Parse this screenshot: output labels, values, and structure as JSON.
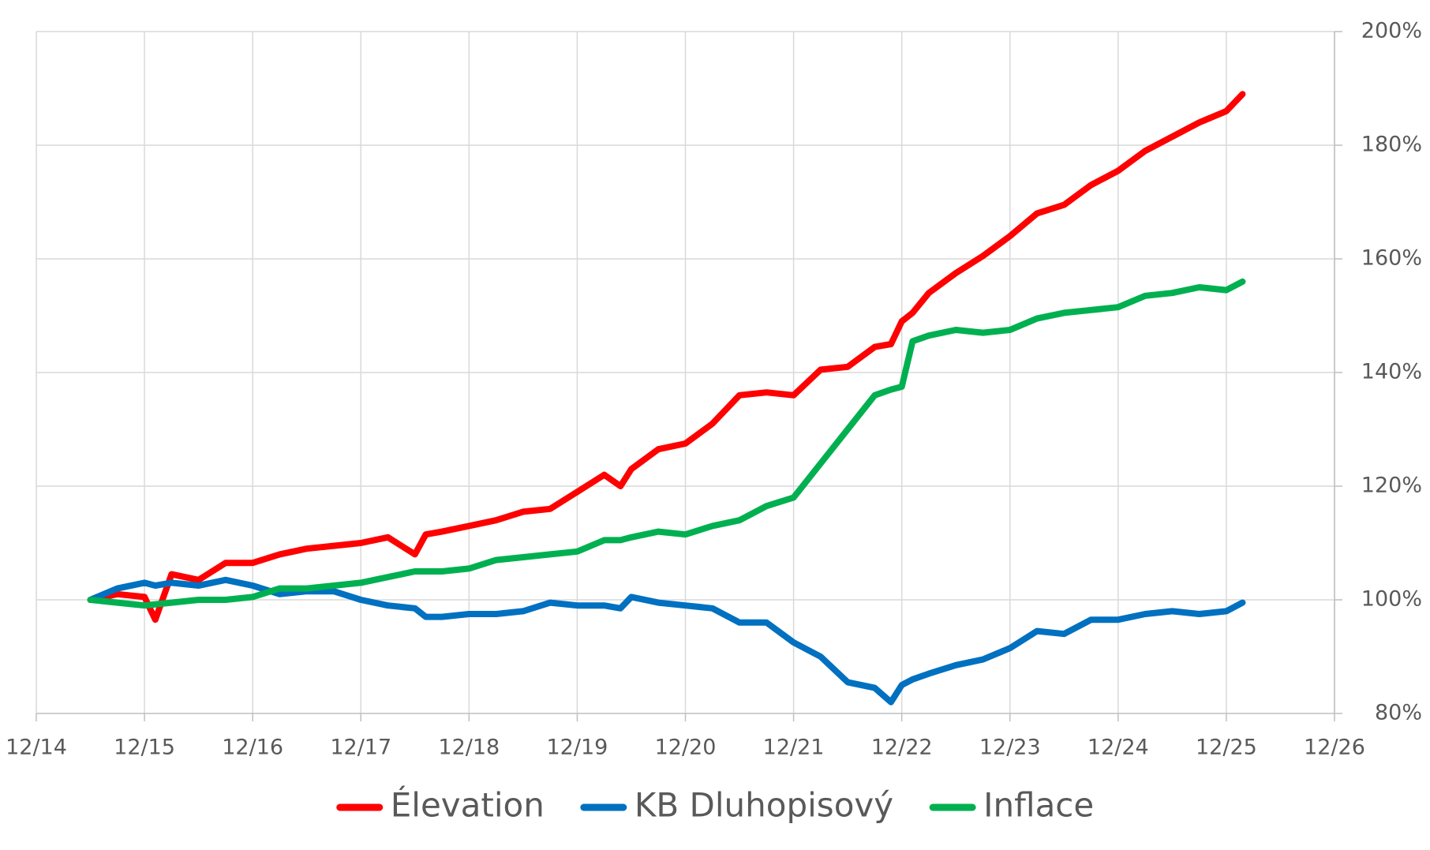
{
  "chart_data": {
    "type": "line",
    "x": [
      2015.5,
      2015.75,
      2016.0,
      2016.1,
      2016.25,
      2016.5,
      2016.75,
      2017.0,
      2017.25,
      2017.5,
      2017.75,
      2018.0,
      2018.25,
      2018.5,
      2018.6,
      2018.75,
      2019.0,
      2019.25,
      2019.5,
      2019.75,
      2020.0,
      2020.25,
      2020.4,
      2020.5,
      2020.75,
      2021.0,
      2021.25,
      2021.5,
      2021.75,
      2022.0,
      2022.25,
      2022.5,
      2022.75,
      2022.9,
      2023.0,
      2023.1,
      2023.25,
      2023.5,
      2023.75,
      2024.0,
      2024.25,
      2024.5,
      2024.75,
      2025.0,
      2025.25,
      2025.5,
      2025.75,
      2026.0,
      2026.15
    ],
    "series": [
      {
        "name": "Élevation",
        "color": "#ff0000",
        "values": [
          100,
          101,
          100.5,
          96.5,
          104.5,
          103.5,
          106.5,
          106.5,
          108,
          109,
          109.5,
          110,
          111,
          108,
          111.5,
          112,
          113,
          114,
          115.5,
          116,
          119,
          122,
          120,
          123,
          126.5,
          127.5,
          131,
          136,
          136.5,
          136,
          140.5,
          141,
          144.5,
          145,
          149,
          150.5,
          154,
          157.5,
          160.5,
          164,
          168,
          169.5,
          173,
          175.5,
          179,
          181.5,
          184,
          186,
          189
        ]
      },
      {
        "name": "KB Dluhopisový",
        "color": "#0070c0",
        "values": [
          100,
          102,
          103,
          102.5,
          103,
          102.5,
          103.5,
          102.5,
          101,
          101.5,
          101.5,
          100,
          99,
          98.5,
          97,
          97,
          97.5,
          97.5,
          98,
          99.5,
          99,
          99,
          98.5,
          100.5,
          99.5,
          99,
          98.5,
          96,
          96,
          92.5,
          90,
          85.5,
          84.5,
          82,
          85,
          86,
          87,
          88.5,
          89.5,
          91.5,
          94.5,
          94,
          96.5,
          96.5,
          97.5,
          98,
          97.5,
          98,
          99.5
        ]
      },
      {
        "name": "Inflace",
        "color": "#00b050",
        "values": [
          100,
          99.5,
          99,
          99.2,
          99.5,
          100,
          100,
          100.5,
          102,
          102,
          102.5,
          103,
          104,
          105,
          105,
          105,
          105.5,
          107,
          107.5,
          108,
          108.5,
          110.5,
          110.5,
          111,
          112,
          111.5,
          113,
          114,
          116.5,
          118,
          124,
          130,
          136,
          137,
          137.5,
          145.5,
          146.5,
          147.5,
          147,
          147.5,
          149.5,
          150.5,
          151,
          151.5,
          153.5,
          154,
          155,
          154.5,
          156
        ]
      }
    ],
    "xlim": [
      2015,
      2027
    ],
    "xticks": [
      {
        "value": 2015,
        "label": "12/14"
      },
      {
        "value": 2016,
        "label": "12/15"
      },
      {
        "value": 2017,
        "label": "12/16"
      },
      {
        "value": 2018,
        "label": "12/17"
      },
      {
        "value": 2019,
        "label": "12/18"
      },
      {
        "value": 2020,
        "label": "12/19"
      },
      {
        "value": 2021,
        "label": "12/20"
      },
      {
        "value": 2022,
        "label": "12/21"
      },
      {
        "value": 2023,
        "label": "12/22"
      },
      {
        "value": 2024,
        "label": "12/23"
      },
      {
        "value": 2025,
        "label": "12/24"
      },
      {
        "value": 2026,
        "label": "12/25"
      },
      {
        "value": 2027,
        "label": "12/26"
      }
    ],
    "ylim": [
      80,
      200
    ],
    "yticks": [
      {
        "value": 80,
        "label": "80%"
      },
      {
        "value": 100,
        "label": "100%"
      },
      {
        "value": 120,
        "label": "120%"
      },
      {
        "value": 140,
        "label": "140%"
      },
      {
        "value": 160,
        "label": "160%"
      },
      {
        "value": 180,
        "label": "180%"
      },
      {
        "value": 200,
        "label": "200%"
      }
    ],
    "grid": true,
    "y_axis_side": "right",
    "legend": "bottom"
  }
}
